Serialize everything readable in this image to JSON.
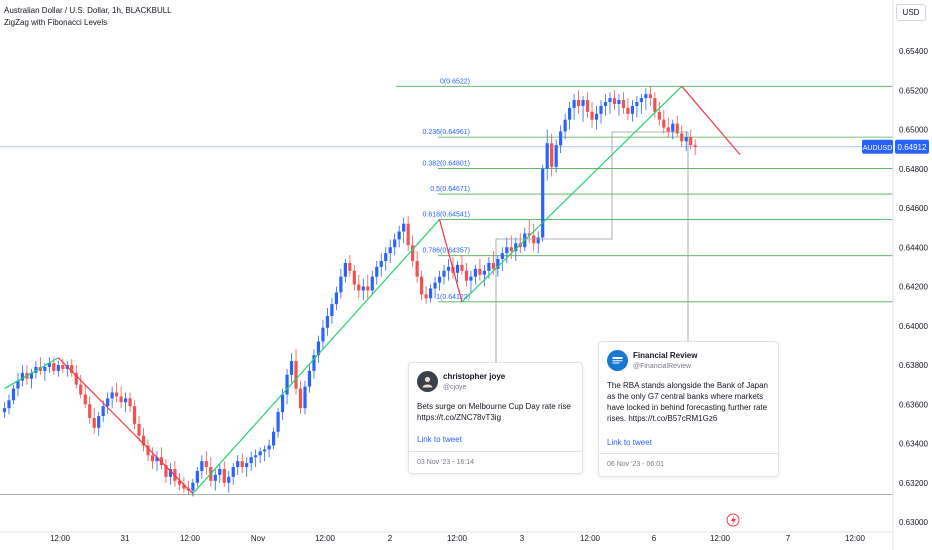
{
  "header": {
    "title": "Australian Dollar / U.S. Dollar, 1h, BLACKBULL",
    "indicator": "ZigZag with Fibonacci Levels",
    "currency_button": "USD"
  },
  "colors": {
    "up": "#2962ff",
    "down": "#ef5350",
    "zigzag_up": "#22d36e",
    "zigzag_down": "#f23645",
    "fib": "#4caf50",
    "price_line": "#2962ff"
  },
  "tweets": [
    {
      "name": "christopher joye",
      "handle": "@cjoye",
      "text": "Bets surge on Melbourne Cup Day rate rise https://t.co/ZNC78vT3ig",
      "link_label": "Link to tweet",
      "timestamp": "03 Nov '23 - 16:14"
    },
    {
      "name": "Financial Review",
      "handle": "@FinancialReview",
      "text": "The RBA stands alongside the Bank of Japan as the only G7 central banks where markets have locked in behind forecasting further rate rises. https://t.co/B57cRM1Gz6",
      "link_label": "Link to tweet",
      "timestamp": "06 Nov '23 - 06:01"
    }
  ],
  "chart_data": {
    "type": "candlestick",
    "symbol": "AUDUSD",
    "last_price": 0.64912,
    "ylim": [
      0.629,
      0.6555
    ],
    "y_ticks": [
      "0.65400",
      "0.65200",
      "0.65000",
      "0.64800",
      "0.64600",
      "0.64400",
      "0.64200",
      "0.64000",
      "0.63800",
      "0.63600",
      "0.63400",
      "0.63200",
      "0.63000"
    ],
    "x_tick_labels": [
      "12:00",
      "31",
      "12:00",
      "Nov",
      "12:00",
      "2",
      "12:00",
      "3",
      "12:00",
      "6",
      "12:00",
      "7",
      "12:00"
    ],
    "fib_levels": [
      {
        "label": "0(0.6522)",
        "value": 0.6522
      },
      {
        "label": "0.236(0.64961)",
        "value": 0.64961
      },
      {
        "label": "0.382(0.64801)",
        "value": 0.64801
      },
      {
        "label": "0.5(0.64671)",
        "value": 0.64671
      },
      {
        "label": "0.618(0.64541)",
        "value": 0.64541
      },
      {
        "label": "0.786(0.64357)",
        "value": 0.64357
      },
      {
        "label": "1(0.64122)",
        "value": 0.64122
      }
    ],
    "zigzag": [
      {
        "t": 0,
        "p": 0.6368,
        "dir": "up"
      },
      {
        "t": 12,
        "p": 0.63837,
        "dir": "down"
      },
      {
        "t": 42,
        "p": 0.63145,
        "dir": "up"
      },
      {
        "t": 97,
        "p": 0.64541,
        "dir": "down"
      },
      {
        "t": 102,
        "p": 0.64122,
        "dir": "up"
      },
      {
        "t": 151,
        "p": 0.6522,
        "dir": "down"
      },
      {
        "t": 164,
        "p": 0.64872,
        "dir": "end"
      }
    ],
    "candles": [
      [
        0.6356,
        0.6361,
        0.6353,
        0.6358
      ],
      [
        0.6358,
        0.6365,
        0.6355,
        0.6362
      ],
      [
        0.6362,
        0.637,
        0.636,
        0.6368
      ],
      [
        0.6368,
        0.6376,
        0.6364,
        0.6372
      ],
      [
        0.6372,
        0.638,
        0.6369,
        0.6376
      ],
      [
        0.6376,
        0.638,
        0.637,
        0.6373
      ],
      [
        0.6373,
        0.6378,
        0.6368,
        0.6376
      ],
      [
        0.6376,
        0.6382,
        0.6373,
        0.6379
      ],
      [
        0.6379,
        0.6384,
        0.6375,
        0.6377
      ],
      [
        0.6377,
        0.6381,
        0.6372,
        0.6379
      ],
      [
        0.6379,
        0.6384,
        0.6376,
        0.6381
      ],
      [
        0.6381,
        0.6384,
        0.6375,
        0.6377
      ],
      [
        0.6377,
        0.6382,
        0.6374,
        0.638
      ],
      [
        0.638,
        0.6383,
        0.6376,
        0.6378
      ],
      [
        0.6378,
        0.6382,
        0.6374,
        0.638
      ],
      [
        0.638,
        0.6383,
        0.6374,
        0.6376
      ],
      [
        0.6376,
        0.638,
        0.6368,
        0.637
      ],
      [
        0.637,
        0.6375,
        0.6363,
        0.6365
      ],
      [
        0.6365,
        0.637,
        0.6358,
        0.636
      ],
      [
        0.636,
        0.6364,
        0.635,
        0.6353
      ],
      [
        0.6353,
        0.6358,
        0.6345,
        0.6348
      ],
      [
        0.6348,
        0.6356,
        0.6344,
        0.6354
      ],
      [
        0.6354,
        0.6362,
        0.6351,
        0.6359
      ],
      [
        0.6359,
        0.6366,
        0.6355,
        0.6363
      ],
      [
        0.6363,
        0.6369,
        0.6358,
        0.6366
      ],
      [
        0.6366,
        0.6371,
        0.6361,
        0.6364
      ],
      [
        0.6364,
        0.6369,
        0.6358,
        0.6361
      ],
      [
        0.6361,
        0.6366,
        0.6356,
        0.6363
      ],
      [
        0.6363,
        0.6366,
        0.6356,
        0.6359
      ],
      [
        0.6359,
        0.6362,
        0.6347,
        0.635
      ],
      [
        0.635,
        0.6354,
        0.6341,
        0.6344
      ],
      [
        0.6344,
        0.6348,
        0.6336,
        0.6339
      ],
      [
        0.6339,
        0.6342,
        0.6331,
        0.6334
      ],
      [
        0.6334,
        0.6338,
        0.6327,
        0.6331
      ],
      [
        0.6331,
        0.6336,
        0.6326,
        0.6333
      ],
      [
        0.6333,
        0.6338,
        0.6327,
        0.6329
      ],
      [
        0.6329,
        0.6332,
        0.632,
        0.6323
      ],
      [
        0.6323,
        0.633,
        0.6319,
        0.6327
      ],
      [
        0.6327,
        0.6331,
        0.6318,
        0.6321
      ],
      [
        0.6321,
        0.6325,
        0.6316,
        0.6319
      ],
      [
        0.6319,
        0.6323,
        0.6315,
        0.6317
      ],
      [
        0.6317,
        0.6321,
        0.6314,
        0.6316
      ],
      [
        0.6316,
        0.6322,
        0.6313,
        0.632
      ],
      [
        0.632,
        0.6328,
        0.6318,
        0.6326
      ],
      [
        0.6326,
        0.6334,
        0.6322,
        0.6331
      ],
      [
        0.6331,
        0.6336,
        0.6324,
        0.6328
      ],
      [
        0.6328,
        0.6333,
        0.6318,
        0.6321
      ],
      [
        0.6321,
        0.6327,
        0.6316,
        0.6324
      ],
      [
        0.6324,
        0.633,
        0.632,
        0.6327
      ],
      [
        0.6327,
        0.6331,
        0.6318,
        0.632
      ],
      [
        0.632,
        0.6326,
        0.6315,
        0.6323
      ],
      [
        0.6323,
        0.633,
        0.6319,
        0.6328
      ],
      [
        0.6328,
        0.6334,
        0.6324,
        0.6331
      ],
      [
        0.6331,
        0.6335,
        0.6325,
        0.6328
      ],
      [
        0.6328,
        0.6333,
        0.6323,
        0.633
      ],
      [
        0.633,
        0.6336,
        0.6326,
        0.6333
      ],
      [
        0.6333,
        0.6337,
        0.6328,
        0.6334
      ],
      [
        0.6334,
        0.6338,
        0.633,
        0.6336
      ],
      [
        0.6336,
        0.6339,
        0.6331,
        0.6337
      ],
      [
        0.6337,
        0.6342,
        0.6333,
        0.6339
      ],
      [
        0.6339,
        0.6348,
        0.6337,
        0.6346
      ],
      [
        0.6346,
        0.6358,
        0.6343,
        0.6356
      ],
      [
        0.6356,
        0.6368,
        0.6352,
        0.6365
      ],
      [
        0.6365,
        0.6378,
        0.636,
        0.6375
      ],
      [
        0.6375,
        0.6386,
        0.6371,
        0.6382
      ],
      [
        0.6382,
        0.6388,
        0.6365,
        0.6368
      ],
      [
        0.6368,
        0.6372,
        0.6355,
        0.6358
      ],
      [
        0.6358,
        0.6372,
        0.6355,
        0.6369
      ],
      [
        0.6369,
        0.638,
        0.6366,
        0.6377
      ],
      [
        0.6377,
        0.6388,
        0.6373,
        0.6385
      ],
      [
        0.6385,
        0.6395,
        0.6381,
        0.6392
      ],
      [
        0.6392,
        0.6403,
        0.6388,
        0.6399
      ],
      [
        0.6399,
        0.6409,
        0.6395,
        0.6405
      ],
      [
        0.6405,
        0.6414,
        0.6401,
        0.6411
      ],
      [
        0.6411,
        0.642,
        0.6408,
        0.6417
      ],
      [
        0.6417,
        0.6429,
        0.6414,
        0.6425
      ],
      [
        0.6425,
        0.6434,
        0.6422,
        0.6432
      ],
      [
        0.6432,
        0.6436,
        0.6425,
        0.6428
      ],
      [
        0.6428,
        0.6431,
        0.6418,
        0.6421
      ],
      [
        0.6421,
        0.6426,
        0.6414,
        0.6418
      ],
      [
        0.6418,
        0.6424,
        0.6413,
        0.642
      ],
      [
        0.642,
        0.6426,
        0.6414,
        0.6418
      ],
      [
        0.6418,
        0.6428,
        0.6416,
        0.6425
      ],
      [
        0.6425,
        0.6433,
        0.6421,
        0.643
      ],
      [
        0.643,
        0.6437,
        0.6425,
        0.6433
      ],
      [
        0.6433,
        0.644,
        0.6428,
        0.6437
      ],
      [
        0.6437,
        0.6444,
        0.6432,
        0.644
      ],
      [
        0.644,
        0.6447,
        0.6436,
        0.6444
      ],
      [
        0.6444,
        0.6451,
        0.644,
        0.6448
      ],
      [
        0.6448,
        0.6455,
        0.6442,
        0.6452
      ],
      [
        0.6452,
        0.6456,
        0.6438,
        0.6441
      ],
      [
        0.6441,
        0.6446,
        0.643,
        0.6433
      ],
      [
        0.6433,
        0.6438,
        0.6422,
        0.6425
      ],
      [
        0.6425,
        0.6428,
        0.6413,
        0.6416
      ],
      [
        0.6416,
        0.642,
        0.6411,
        0.6414
      ],
      [
        0.6414,
        0.6421,
        0.6412,
        0.6419
      ],
      [
        0.6419,
        0.6425,
        0.6414,
        0.6422
      ],
      [
        0.6422,
        0.6428,
        0.6418,
        0.6425
      ],
      [
        0.6425,
        0.6431,
        0.6421,
        0.6428
      ],
      [
        0.6428,
        0.6434,
        0.6423,
        0.643
      ],
      [
        0.643,
        0.6435,
        0.6424,
        0.6427
      ],
      [
        0.6427,
        0.6433,
        0.6422,
        0.6431
      ],
      [
        0.6431,
        0.6436,
        0.6426,
        0.6428
      ],
      [
        0.6428,
        0.6432,
        0.642,
        0.6423
      ],
      [
        0.6423,
        0.6428,
        0.6417,
        0.6425
      ],
      [
        0.6425,
        0.6431,
        0.6421,
        0.6429
      ],
      [
        0.6429,
        0.6434,
        0.6423,
        0.6426
      ],
      [
        0.6426,
        0.6431,
        0.642,
        0.6428
      ],
      [
        0.6428,
        0.6435,
        0.6424,
        0.6432
      ],
      [
        0.6432,
        0.6438,
        0.6426,
        0.6429
      ],
      [
        0.6429,
        0.6436,
        0.6425,
        0.6434
      ],
      [
        0.6434,
        0.644,
        0.6428,
        0.6437
      ],
      [
        0.6437,
        0.6445,
        0.6432,
        0.644
      ],
      [
        0.644,
        0.6446,
        0.6434,
        0.6438
      ],
      [
        0.6438,
        0.6445,
        0.6433,
        0.6442
      ],
      [
        0.6442,
        0.6447,
        0.6437,
        0.644
      ],
      [
        0.644,
        0.645,
        0.6438,
        0.6447
      ],
      [
        0.6447,
        0.6454,
        0.6442,
        0.6446
      ],
      [
        0.6446,
        0.6452,
        0.6438,
        0.6442
      ],
      [
        0.6442,
        0.6448,
        0.6437,
        0.6445
      ],
      [
        0.6445,
        0.6482,
        0.6443,
        0.648
      ],
      [
        0.648,
        0.65,
        0.6474,
        0.6493
      ],
      [
        0.6493,
        0.6498,
        0.6476,
        0.6481
      ],
      [
        0.6481,
        0.6495,
        0.6478,
        0.6492
      ],
      [
        0.6492,
        0.6502,
        0.6488,
        0.6499
      ],
      [
        0.6499,
        0.6508,
        0.6495,
        0.6505
      ],
      [
        0.6505,
        0.6514,
        0.65,
        0.6511
      ],
      [
        0.6511,
        0.6518,
        0.6505,
        0.6515
      ],
      [
        0.6515,
        0.652,
        0.6508,
        0.6512
      ],
      [
        0.6512,
        0.6517,
        0.6504,
        0.6515
      ],
      [
        0.6515,
        0.6519,
        0.6506,
        0.6509
      ],
      [
        0.6509,
        0.6514,
        0.6501,
        0.6505
      ],
      [
        0.6505,
        0.6512,
        0.65,
        0.6508
      ],
      [
        0.6508,
        0.6515,
        0.6503,
        0.6512
      ],
      [
        0.6512,
        0.6518,
        0.6507,
        0.6514
      ],
      [
        0.6514,
        0.6519,
        0.6508,
        0.6516
      ],
      [
        0.6516,
        0.652,
        0.651,
        0.6513
      ],
      [
        0.6513,
        0.6518,
        0.6507,
        0.6515
      ],
      [
        0.6515,
        0.6519,
        0.6508,
        0.6511
      ],
      [
        0.6511,
        0.6516,
        0.6505,
        0.6508
      ],
      [
        0.6508,
        0.6515,
        0.6504,
        0.6512
      ],
      [
        0.6512,
        0.6517,
        0.6506,
        0.6514
      ],
      [
        0.6514,
        0.6518,
        0.6508,
        0.6516
      ],
      [
        0.6516,
        0.6521,
        0.651,
        0.6518
      ],
      [
        0.6518,
        0.6522,
        0.6512,
        0.6516
      ],
      [
        0.6516,
        0.6519,
        0.6506,
        0.6509
      ],
      [
        0.6509,
        0.6514,
        0.6502,
        0.6505
      ],
      [
        0.6505,
        0.651,
        0.6498,
        0.6501
      ],
      [
        0.6501,
        0.6506,
        0.6496,
        0.6499
      ],
      [
        0.6499,
        0.6505,
        0.6495,
        0.6503
      ],
      [
        0.6503,
        0.6507,
        0.6496,
        0.6498
      ],
      [
        0.6498,
        0.6502,
        0.6491,
        0.6494
      ],
      [
        0.6494,
        0.6499,
        0.6489,
        0.6496
      ],
      [
        0.6496,
        0.65,
        0.649,
        0.6492
      ],
      [
        0.6492,
        0.6495,
        0.6487,
        0.6491
      ]
    ]
  }
}
